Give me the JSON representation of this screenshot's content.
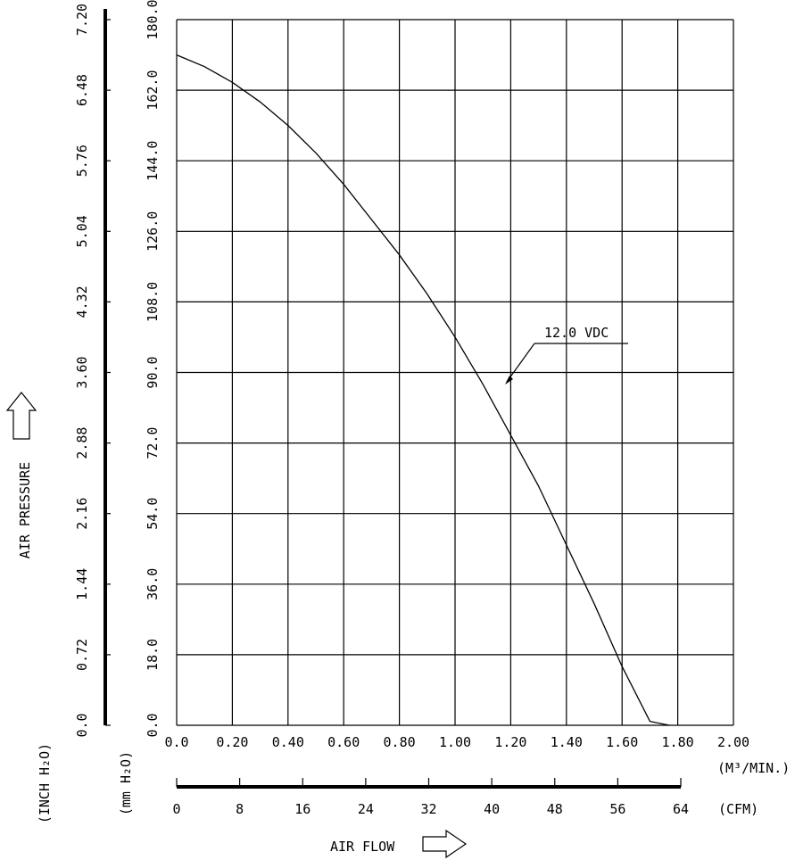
{
  "chart_data": {
    "type": "line",
    "xlabel": "AIR FLOW",
    "ylabel": "AIR PRESSURE",
    "x_unit": "(M³/MIN.)",
    "x_ticks": [
      "0.0",
      "0.20",
      "0.40",
      "0.60",
      "0.80",
      "1.00",
      "1.20",
      "1.40",
      "1.60",
      "1.80",
      "2.00"
    ],
    "xlim": [
      0,
      2.0
    ],
    "cfm_unit": "(CFM)",
    "cfm_ticks": [
      "0",
      "8",
      "16",
      "24",
      "32",
      "40",
      "48",
      "56",
      "64"
    ],
    "cfm_range": [
      0,
      64
    ],
    "y_mm_unit": "(mm H₂O)",
    "y_mm_ticks": [
      "0.0",
      "18.0",
      "36.0",
      "54.0",
      "72.0",
      "90.0",
      "108.0",
      "126.0",
      "144.0",
      "162.0",
      "180.0"
    ],
    "ylim": [
      0,
      180
    ],
    "y_inch_unit": "(INCH H₂O)",
    "y_inch_ticks": [
      "0.0",
      "0.72",
      "1.44",
      "2.16",
      "2.88",
      "3.60",
      "4.32",
      "5.04",
      "5.76",
      "6.48",
      "7.20"
    ],
    "grid": true,
    "annotation": "12.0 VDC",
    "series": [
      {
        "name": "12.0 VDC",
        "x": [
          0.0,
          0.1,
          0.2,
          0.3,
          0.4,
          0.5,
          0.6,
          0.7,
          0.8,
          0.9,
          1.0,
          1.1,
          1.2,
          1.3,
          1.4,
          1.5,
          1.6,
          1.7,
          1.77
        ],
        "y": [
          171,
          168,
          164,
          159,
          153,
          146,
          138,
          129,
          120,
          110,
          99,
          87,
          74,
          61,
          46,
          31,
          15,
          1,
          0
        ]
      }
    ]
  }
}
